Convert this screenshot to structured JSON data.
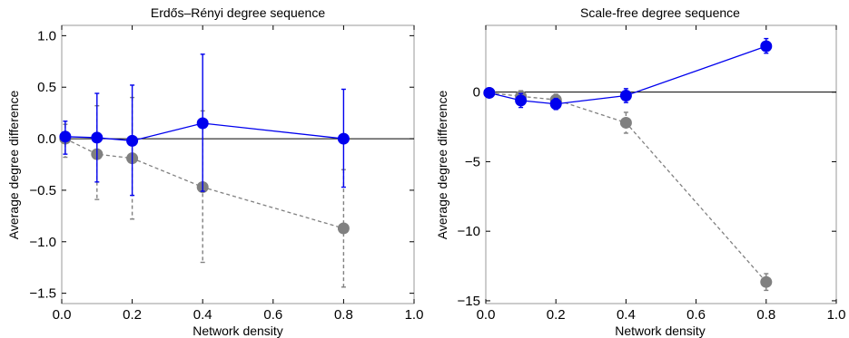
{
  "chart_data": [
    {
      "type": "scatter",
      "title": "Erdős–Rényi degree sequence",
      "xlabel": "Network density",
      "ylabel": "Average degree difference",
      "xlim": [
        0,
        1
      ],
      "ylim": [
        -1.6,
        1.1
      ],
      "xticks": [
        "0.0",
        "0.2",
        "0.4",
        "0.6",
        "0.8",
        "1.0"
      ],
      "yticks": [
        "1.0",
        "0.5",
        "0.0",
        "−0.5",
        "−1.0",
        "−1.5"
      ],
      "reference_line": 0,
      "grid": false,
      "series": [
        {
          "color": "#0000ee",
          "line_style": "solid",
          "x": [
            0.01,
            0.1,
            0.2,
            0.4,
            0.8
          ],
          "y": [
            0.02,
            0.01,
            -0.02,
            0.15,
            0.0
          ],
          "err_low": [
            -0.15,
            -0.42,
            -0.55,
            -0.51,
            -0.47
          ],
          "err_high": [
            0.17,
            0.44,
            0.52,
            0.82,
            0.48
          ]
        },
        {
          "color": "#808080",
          "line_style": "dashed",
          "x": [
            0.01,
            0.1,
            0.2,
            0.4,
            0.8
          ],
          "y": [
            0.0,
            -0.15,
            -0.19,
            -0.47,
            -0.87
          ],
          "err_low": [
            -0.18,
            -0.59,
            -0.78,
            -1.2,
            -1.44
          ],
          "err_high": [
            0.14,
            0.32,
            0.4,
            0.27,
            -0.3
          ]
        }
      ]
    },
    {
      "type": "scatter",
      "title": "Scale-free degree sequence",
      "xlabel": "Network density",
      "ylabel": "Average degree difference",
      "xlim": [
        0,
        1
      ],
      "ylim": [
        -15.2,
        4.8
      ],
      "xticks": [
        "0.0",
        "0.2",
        "0.4",
        "0.6",
        "0.8",
        "1.0"
      ],
      "yticks": [
        "0",
        "−5",
        "−10",
        "−15"
      ],
      "reference_line": 0,
      "grid": false,
      "series": [
        {
          "color": "#0000ee",
          "line_style": "solid",
          "x": [
            0.01,
            0.1,
            0.2,
            0.4,
            0.8
          ],
          "y": [
            -0.05,
            -0.6,
            -0.85,
            -0.25,
            3.3
          ],
          "err_low": [
            -0.2,
            -1.1,
            -1.25,
            -0.75,
            2.8
          ],
          "err_high": [
            0.1,
            -0.1,
            -0.45,
            0.25,
            3.85
          ]
        },
        {
          "color": "#808080",
          "line_style": "dashed",
          "x": [
            0.01,
            0.1,
            0.2,
            0.4,
            0.8
          ],
          "y": [
            -0.05,
            -0.3,
            -0.55,
            -2.2,
            -13.65
          ],
          "err_low": [
            -0.15,
            -0.65,
            -0.95,
            -2.95,
            -14.25
          ],
          "err_high": [
            0.05,
            0.1,
            -0.15,
            -1.45,
            -13.05
          ]
        }
      ]
    }
  ]
}
